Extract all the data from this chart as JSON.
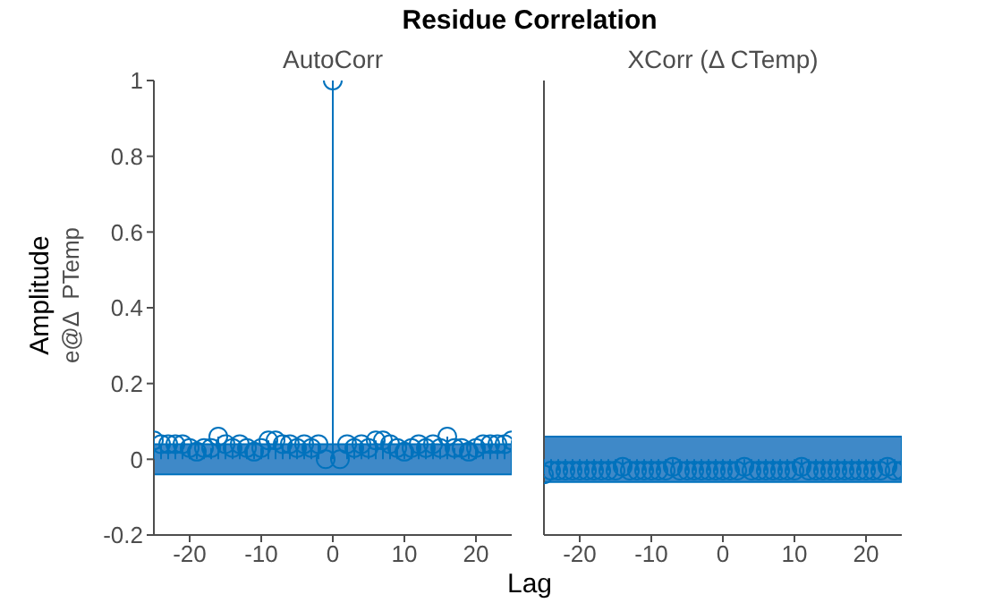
{
  "chart_data": [
    {
      "type": "lollipop",
      "title": "AutoCorr",
      "xlabel": "Lag",
      "ylabel": "Amplitude",
      "annotations": [
        "Residue Correlation",
        "e@Δ  PTemp"
      ],
      "marker": "circle",
      "x": [
        -25,
        -24,
        -23,
        -22,
        -21,
        -20,
        -19,
        -18,
        -17,
        -16,
        -15,
        -14,
        -13,
        -12,
        -11,
        -10,
        -9,
        -8,
        -7,
        -6,
        -5,
        -4,
        -3,
        -2,
        -1,
        0,
        1,
        2,
        3,
        4,
        5,
        6,
        7,
        8,
        9,
        10,
        11,
        12,
        13,
        14,
        15,
        16,
        17,
        18,
        19,
        20,
        21,
        22,
        23,
        24,
        25
      ],
      "series": [
        {
          "color": "#0072bd",
          "values": [
            0.05,
            0.04,
            0.04,
            0.04,
            0.04,
            0.03,
            0.02,
            0.03,
            0.03,
            0.06,
            0.04,
            0.03,
            0.04,
            0.03,
            0.02,
            0.03,
            0.05,
            0.05,
            0.04,
            0.04,
            0.03,
            0.04,
            0.03,
            0.04,
            0.0,
            1,
            0.0,
            0.04,
            0.03,
            0.04,
            0.03,
            0.05,
            0.05,
            0.04,
            0.03,
            0.02,
            0.03,
            0.04,
            0.03,
            0.04,
            0.03,
            0.06,
            0.03,
            0.03,
            0.02,
            0.03,
            0.04,
            0.04,
            0.04,
            0.04,
            0.05
          ]
        }
      ],
      "bands": [
        {
          "axis": "y",
          "from": -0.04,
          "to": 0.04,
          "color": "#3f89c8"
        }
      ],
      "xlim": [
        -25,
        25
      ],
      "xticks": [
        -20,
        -10,
        0,
        10,
        20
      ],
      "ylim": [
        -0.2,
        1
      ],
      "yticks": [
        -0.2,
        0,
        0.2,
        0.4,
        0.6,
        0.8,
        1
      ]
    },
    {
      "type": "lollipop",
      "title": "XCorr  (Δ  CTemp)",
      "marker": "circle",
      "tick_labels": "x",
      "x": [
        -25,
        -24,
        -23,
        -22,
        -21,
        -20,
        -19,
        -18,
        -17,
        -16,
        -15,
        -14,
        -13,
        -12,
        -11,
        -10,
        -9,
        -8,
        -7,
        -6,
        -5,
        -4,
        -3,
        -2,
        -1,
        0,
        1,
        2,
        3,
        4,
        5,
        6,
        7,
        8,
        9,
        10,
        11,
        12,
        13,
        14,
        15,
        16,
        17,
        18,
        19,
        20,
        21,
        22,
        23,
        24,
        25
      ],
      "series": [
        {
          "color": "#0072bd",
          "values": [
            -0.04,
            -0.03,
            -0.03,
            -0.03,
            -0.03,
            -0.03,
            -0.03,
            -0.03,
            -0.03,
            -0.03,
            -0.03,
            -0.02,
            -0.03,
            -0.03,
            -0.03,
            -0.03,
            -0.03,
            -0.03,
            -0.02,
            -0.03,
            -0.03,
            -0.03,
            -0.03,
            -0.03,
            -0.03,
            -0.03,
            -0.03,
            -0.03,
            -0.02,
            -0.03,
            -0.03,
            -0.03,
            -0.03,
            -0.03,
            -0.03,
            -0.03,
            -0.02,
            -0.03,
            -0.03,
            -0.03,
            -0.03,
            -0.03,
            -0.03,
            -0.03,
            -0.03,
            -0.03,
            -0.03,
            -0.03,
            -0.02,
            -0.03,
            -0.03
          ]
        }
      ],
      "bands": [
        {
          "axis": "y",
          "from": -0.06,
          "to": 0.06,
          "color": "#3f89c8"
        }
      ],
      "xlim": [
        -25,
        25
      ],
      "xticks": [
        -20,
        -10,
        0,
        10,
        20
      ],
      "ylim": [
        -0.2,
        1
      ],
      "yticks": [
        -0.2,
        0,
        0.2,
        0.4,
        0.6,
        0.8,
        1
      ]
    }
  ]
}
